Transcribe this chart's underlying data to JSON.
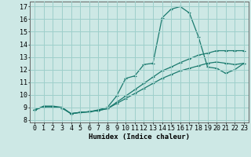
{
  "xlabel": "Humidex (Indice chaleur)",
  "bg_color": "#cde8e5",
  "grid_color": "#9ecfcb",
  "line_color": "#1a7a6e",
  "xlim": [
    -0.5,
    23.5
  ],
  "ylim": [
    7.8,
    17.4
  ],
  "xticks": [
    0,
    1,
    2,
    3,
    4,
    5,
    6,
    7,
    8,
    9,
    10,
    11,
    12,
    13,
    14,
    15,
    16,
    17,
    18,
    19,
    20,
    21,
    22,
    23
  ],
  "yticks": [
    8,
    9,
    10,
    11,
    12,
    13,
    14,
    15,
    16,
    17
  ],
  "line1_x": [
    0,
    1,
    2,
    3,
    4,
    5,
    6,
    7,
    8,
    9,
    10,
    11,
    12,
    13,
    14,
    15,
    16,
    17,
    18,
    19,
    20,
    21,
    22,
    23
  ],
  "line1_y": [
    8.8,
    9.1,
    9.1,
    9.0,
    8.5,
    8.6,
    8.65,
    8.8,
    9.0,
    9.9,
    11.3,
    11.5,
    12.4,
    12.5,
    16.1,
    16.8,
    17.0,
    16.5,
    14.6,
    12.2,
    12.1,
    11.7,
    12.0,
    12.5
  ],
  "line2_x": [
    0,
    1,
    2,
    3,
    4,
    5,
    6,
    7,
    8,
    9,
    10,
    11,
    12,
    13,
    14,
    15,
    16,
    17,
    18,
    19,
    20,
    21,
    22,
    23
  ],
  "line2_y": [
    8.8,
    9.05,
    9.05,
    8.95,
    8.5,
    8.6,
    8.65,
    8.75,
    8.9,
    9.3,
    9.7,
    10.1,
    10.5,
    10.9,
    11.3,
    11.6,
    11.9,
    12.1,
    12.3,
    12.5,
    12.6,
    12.5,
    12.4,
    12.5
  ],
  "line3_x": [
    0,
    1,
    2,
    3,
    4,
    5,
    6,
    7,
    8,
    9,
    10,
    11,
    12,
    13,
    14,
    15,
    16,
    17,
    18,
    19,
    20,
    21,
    22,
    23
  ],
  "line3_y": [
    8.8,
    9.05,
    9.05,
    8.95,
    8.5,
    8.6,
    8.65,
    8.75,
    8.9,
    9.4,
    9.9,
    10.4,
    10.9,
    11.4,
    11.9,
    12.2,
    12.55,
    12.85,
    13.15,
    13.3,
    13.5,
    13.5,
    13.5,
    13.5
  ],
  "xlabel_fontsize": 6.5,
  "tick_fontsize": 6,
  "marker": "+",
  "markersize": 2.8,
  "linewidth": 0.9
}
